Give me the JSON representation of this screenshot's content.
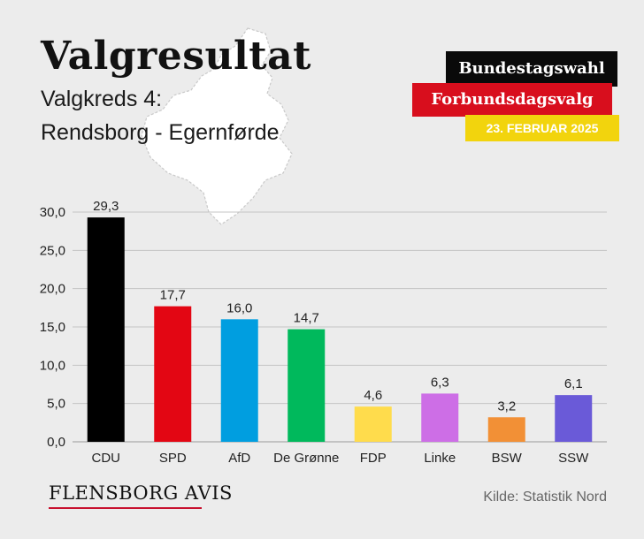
{
  "header": {
    "title": "Valgresultat",
    "subtitle_line1": "Valgkreds 4:",
    "subtitle_line2": "Rendsborg - Egernførde"
  },
  "badges": {
    "line1": "Bundestagswahl",
    "line2": "Forbundsdagsvalg",
    "date": "23. FEBRUAR 2025"
  },
  "footer": {
    "logo": "FLENSBORG AVIS",
    "source": "Kilde: Statistik Nord"
  },
  "colors": {
    "background": "#ececec",
    "badge_black": "#0a0a0a",
    "badge_red": "#d80e1d",
    "badge_yellow": "#f2d40d"
  },
  "chart_data": {
    "type": "bar",
    "categories": [
      "CDU",
      "SPD",
      "AfD",
      "De Grønne",
      "FDP",
      "Linke",
      "BSW",
      "SSW"
    ],
    "values": [
      29.3,
      17.7,
      16.0,
      14.7,
      4.6,
      6.3,
      3.2,
      6.1
    ],
    "value_labels": [
      "29,3",
      "17,7",
      "16,0",
      "14,7",
      "4,6",
      "6,3",
      "3,2",
      "6,1"
    ],
    "colors": [
      "#000000",
      "#e30613",
      "#009ee0",
      "#00b95c",
      "#ffdc4c",
      "#cd6ee6",
      "#f29036",
      "#6a5ad8"
    ],
    "ylim": [
      0,
      30
    ],
    "yticks": [
      0,
      5,
      10,
      15,
      20,
      25,
      30
    ],
    "ytick_labels": [
      "0,0",
      "5,0",
      "10,0",
      "15,0",
      "20,0",
      "25,0",
      "30,0"
    ],
    "grid": true,
    "title": "",
    "xlabel": "",
    "ylabel": ""
  }
}
